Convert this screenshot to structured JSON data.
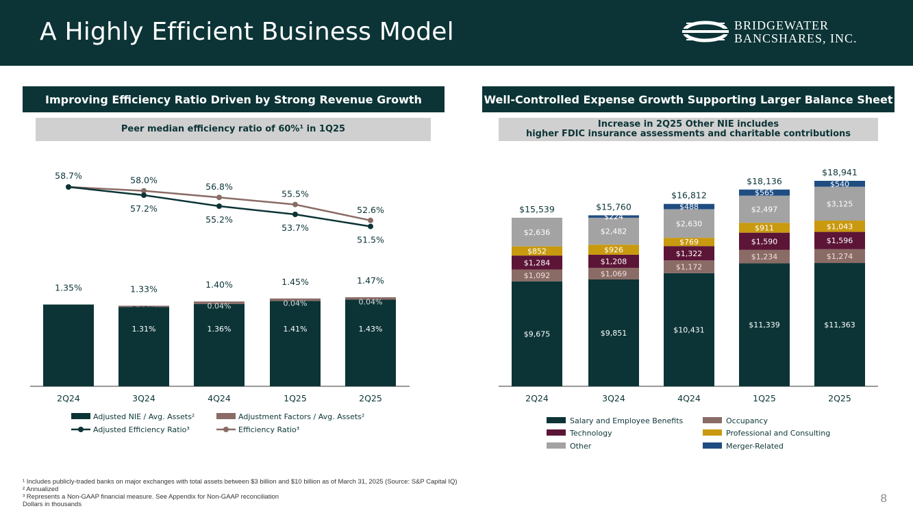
{
  "header": {
    "title": "A Highly Efficient Business Model",
    "logo_line1": "Bridgewater",
    "logo_line2": "Bancshares, Inc."
  },
  "left": {
    "section_title": "Improving Efficiency Ratio Driven by Strong Revenue Growth",
    "sub_title": "Peer median efficiency ratio of 60%¹ in 1Q25"
  },
  "right": {
    "section_title": "Well-Controlled Expense Growth Supporting Larger Balance Sheet",
    "sub_title_line1": "Increase in 2Q25 Other NIE includes",
    "sub_title_line2": "higher FDIC insurance assessments and charitable contributions"
  },
  "chart_data": [
    {
      "type": "bar",
      "stacked": true,
      "categories": [
        "2Q24",
        "3Q24",
        "4Q24",
        "1Q25",
        "2Q25"
      ],
      "series": [
        {
          "name": "Adjusted NIE / Avg. Assets²",
          "values": [
            1.35,
            1.31,
            1.36,
            1.41,
            1.43
          ],
          "labels": [
            "",
            "1.31%",
            "1.36%",
            "1.41%",
            "1.43%"
          ],
          "color": "#0c3436"
        },
        {
          "name": "Adjustment Factors / Avg. Assets²",
          "values": [
            0,
            0.02,
            0.04,
            0.04,
            0.04
          ],
          "labels": [
            "",
            "0.02%",
            "0.04%",
            "0.04%",
            "0.04%"
          ],
          "color": "#8a6b66"
        }
      ],
      "totals": [
        "1.35%",
        "1.33%",
        "1.40%",
        "1.45%",
        "1.47%"
      ],
      "lines": [
        {
          "name": "Adjusted Efficiency Ratio³",
          "values": [
            58.7,
            57.2,
            55.2,
            53.7,
            51.5
          ],
          "labels": [
            "58.7%",
            "57.2%",
            "55.2%",
            "53.7%",
            "51.5%"
          ],
          "color": "#0c3436"
        },
        {
          "name": "Efficiency Ratio³",
          "values": [
            58.7,
            58.0,
            56.8,
            55.5,
            52.6
          ],
          "labels": [
            "",
            "58.0%",
            "56.8%",
            "55.5%",
            "52.6%"
          ],
          "color": "#8a6b66"
        }
      ]
    },
    {
      "type": "bar",
      "stacked": true,
      "categories": [
        "2Q24",
        "3Q24",
        "4Q24",
        "1Q25",
        "2Q25"
      ],
      "series": [
        {
          "name": "Salary and Employee Benefits",
          "values": [
            9675,
            9851,
            10431,
            11339,
            11363
          ],
          "labels": [
            "$9,675",
            "$9,851",
            "$10,431",
            "$11,339",
            "$11,363"
          ],
          "color": "#0c3436"
        },
        {
          "name": "Occupancy",
          "values": [
            1092,
            1069,
            1172,
            1234,
            1274
          ],
          "labels": [
            "$1,092",
            "$1,069",
            "$1,172",
            "$1,234",
            "$1,274"
          ],
          "color": "#8a6b66"
        },
        {
          "name": "Technology",
          "values": [
            1284,
            1208,
            1322,
            1590,
            1596
          ],
          "labels": [
            "$1,284",
            "$1,208",
            "$1,322",
            "$1,590",
            "$1,596"
          ],
          "color": "#5c1537"
        },
        {
          "name": "Professional and Consulting",
          "values": [
            852,
            926,
            769,
            911,
            1043
          ],
          "labels": [
            "$852",
            "$926",
            "$769",
            "$911",
            "$1,043"
          ],
          "color": "#c9990f"
        },
        {
          "name": "Other",
          "values": [
            2636,
            2482,
            2630,
            2497,
            3125
          ],
          "labels": [
            "$2,636",
            "$2,482",
            "$2,630",
            "$2,497",
            "$3,125"
          ],
          "color": "#a3a3a3"
        },
        {
          "name": "Merger-Related",
          "values": [
            0,
            224,
            488,
            565,
            540
          ],
          "labels": [
            "",
            "$224",
            "$488",
            "$565",
            "$540"
          ],
          "color": "#1f4d82"
        }
      ],
      "totals": [
        "$15,539",
        "$15,760",
        "$16,812",
        "$18,136",
        "$18,941"
      ]
    }
  ],
  "footnotes": [
    "¹ Includes publicly-traded banks on major exchanges with total assets between $3 billion and $10 billion as of March 31, 2025 (Source: S&P Capital IQ)",
    "² Annualized",
    "³ Represents a Non-GAAP financial measure. See Appendix for Non-GAAP reconciliation",
    "Dollars in thousands"
  ],
  "page_number": "8"
}
